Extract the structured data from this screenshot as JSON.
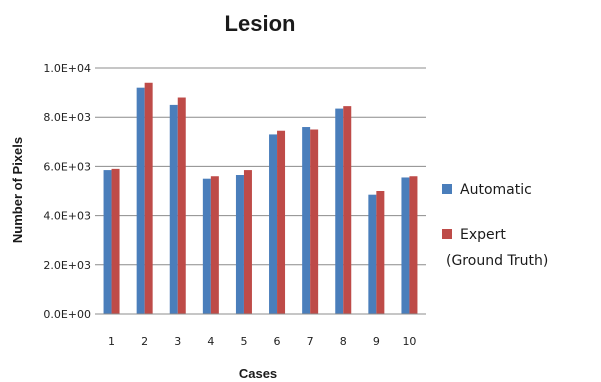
{
  "chart_data": {
    "type": "bar",
    "title": "Lesion",
    "xlabel": "Cases",
    "ylabel": "Number of Pixels",
    "categories": [
      "1",
      "2",
      "3",
      "4",
      "5",
      "6",
      "7",
      "8",
      "9",
      "10"
    ],
    "series": [
      {
        "name": "Automatic",
        "color": "#4a7ebb",
        "values": [
          5850,
          9200,
          8500,
          5500,
          5650,
          7300,
          7600,
          8350,
          4850,
          5550
        ]
      },
      {
        "name": "Expert",
        "name_line2": "(Ground Truth)",
        "color": "#be4b48",
        "values": [
          5900,
          9400,
          8800,
          5600,
          5850,
          7450,
          7500,
          8450,
          5000,
          5600
        ]
      }
    ],
    "ylim": [
      0,
      10000
    ],
    "yticks": [
      0,
      2000,
      4000,
      6000,
      8000,
      10000
    ],
    "ytick_labels": [
      "0.0E+00",
      "2.0E+03",
      "4.0E+03",
      "6.0E+03",
      "8.0E+03",
      "1.0E+04"
    ],
    "grid": true,
    "legend_position": "right"
  }
}
